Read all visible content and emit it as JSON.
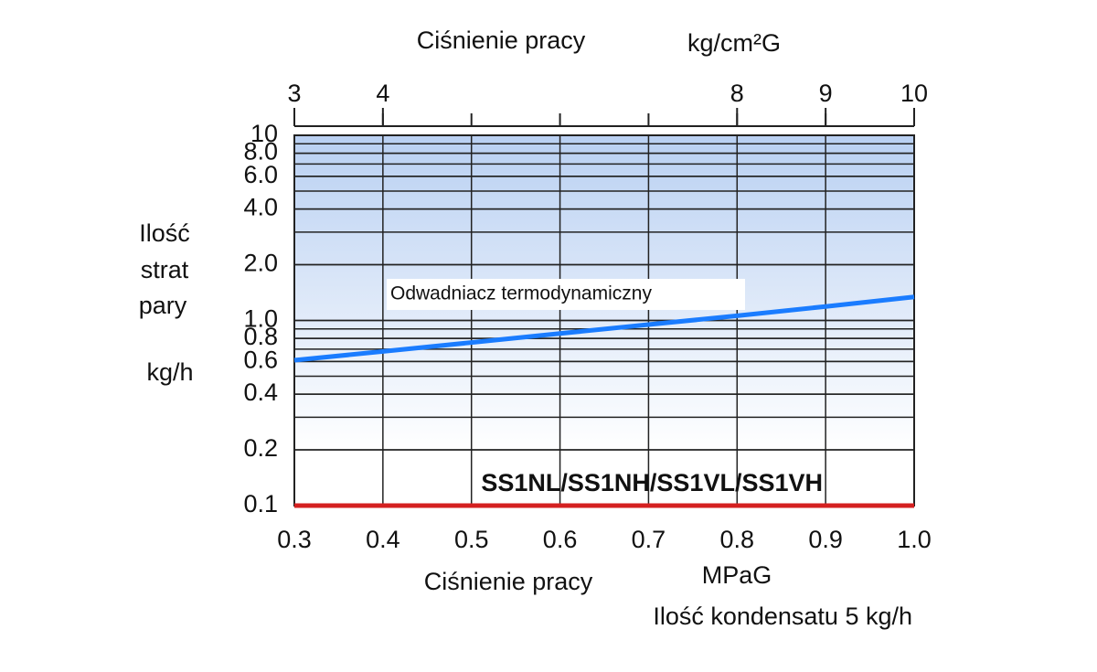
{
  "chart_data": {
    "type": "line",
    "title": "Ciśnienie pracy",
    "title_unit": "kg/cm²G",
    "ylabel": [
      "Ilość",
      "strat",
      "pary",
      "kg/h"
    ],
    "xlabel": "Ciśnienie pracy",
    "xlabel_unit": "MPaG",
    "note": "Ilość kondensatu 5 kg/h",
    "x": [
      0.3,
      0.4,
      0.5,
      0.6,
      0.7,
      0.8,
      0.9,
      1.0
    ],
    "series": [
      {
        "name": "Odwadniacz termodynamiczny",
        "color": "#1a7cff",
        "values": [
          0.61,
          0.68,
          0.76,
          0.85,
          0.95,
          1.06,
          1.19,
          1.34
        ]
      },
      {
        "name": "SS1NL/SS1NH/SS1VL/SS1VH",
        "color": "#d42020",
        "values": [
          0.1,
          0.1,
          0.1,
          0.1,
          0.1,
          0.1,
          0.1,
          0.1
        ]
      }
    ],
    "xlim": [
      0.3,
      1.0
    ],
    "xticks": [
      0.3,
      0.4,
      0.5,
      0.6,
      0.7,
      0.8,
      0.9,
      {
        "value": 1,
        "label": "1.0"
      }
    ],
    "x2lim": [
      3,
      10
    ],
    "x2ticks": [
      3,
      4,
      8,
      9,
      10
    ],
    "ylim": [
      0.1,
      10
    ],
    "yticks": [
      10,
      {
        "value": 8,
        "label": "8.0"
      },
      {
        "value": 6,
        "label": "6.0"
      },
      {
        "value": 4,
        "label": "4.0"
      },
      {
        "value": 2,
        "label": "2.0"
      },
      {
        "value": 1,
        "label": "1.0"
      },
      0.8,
      0.6,
      0.4,
      0.2,
      0.1
    ],
    "ylog": true,
    "grid": true,
    "minor_grid": true
  }
}
